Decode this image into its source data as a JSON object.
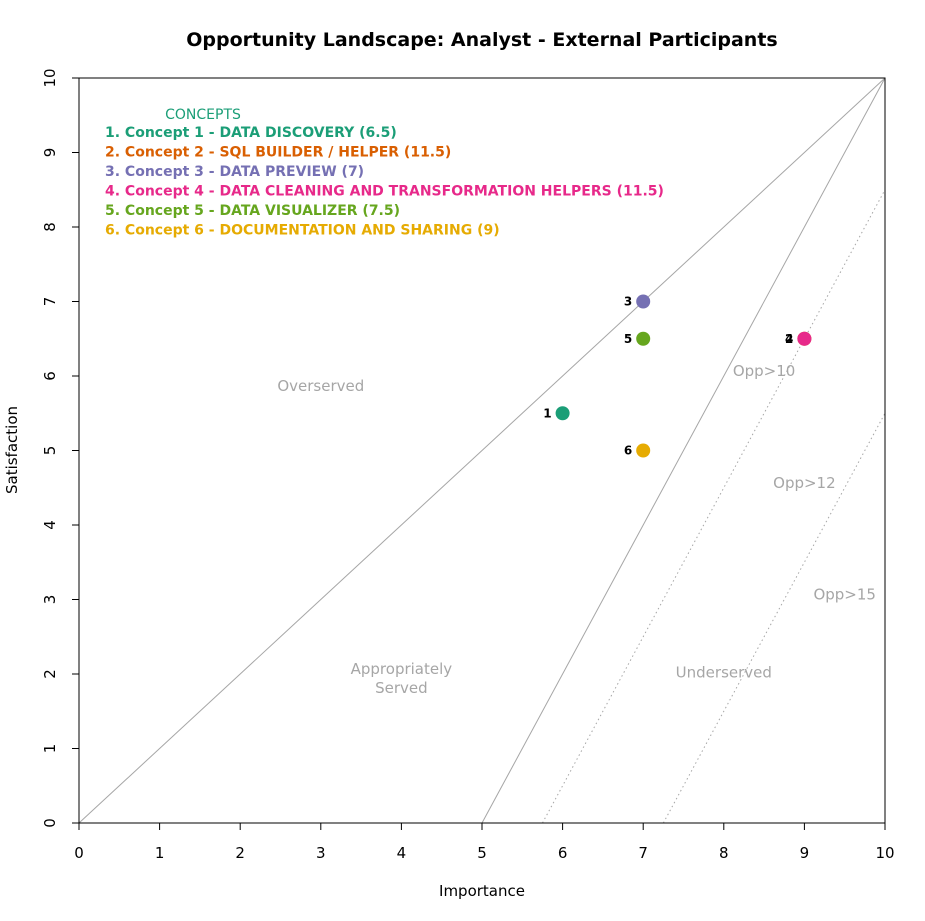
{
  "chart_data": {
    "type": "scatter",
    "title": "Opportunity Landscape: Analyst - External Participants",
    "xlabel": "Importance",
    "ylabel": "Satisfaction",
    "xlim": [
      0,
      10
    ],
    "ylim": [
      0,
      10
    ],
    "x_ticks": [
      "0",
      "1",
      "2",
      "3",
      "4",
      "5",
      "6",
      "7",
      "8",
      "9",
      "10"
    ],
    "y_ticks": [
      "0",
      "1",
      "2",
      "3",
      "4",
      "5",
      "6",
      "7",
      "8",
      "9",
      "10"
    ],
    "grid": false,
    "legend": {
      "title": "CONCEPTS",
      "title_color": "#1b9e77",
      "placement": "top-left"
    },
    "points": [
      {
        "label": "1",
        "legend": "1. Concept 1 - DATA DISCOVERY (6.5)",
        "x": 6,
        "y": 5.5,
        "color": "#1b9e77"
      },
      {
        "label": "2",
        "legend": "2. Concept 2 - SQL BUILDER / HELPER (11.5)",
        "x": 9,
        "y": 6.5,
        "color": "#d95f02"
      },
      {
        "label": "3",
        "legend": "3. Concept 3 - DATA PREVIEW (7)",
        "x": 7,
        "y": 7,
        "color": "#7570b3"
      },
      {
        "label": "4",
        "legend": "4. Concept 4 - DATA CLEANING AND TRANSFORMATION HELPERS (11.5)",
        "x": 9,
        "y": 6.5,
        "color": "#e7298a"
      },
      {
        "label": "5",
        "legend": "5. Concept 5 - DATA VISUALIZER (7.5)",
        "x": 7,
        "y": 6.5,
        "color": "#66a61e"
      },
      {
        "label": "6",
        "legend": "6. Concept 6 - DOCUMENTATION AND SHARING (9)",
        "x": 7,
        "y": 5,
        "color": "#e6ab02"
      }
    ],
    "reference_lines": [
      {
        "kind": "solid",
        "from": [
          0,
          0
        ],
        "to": [
          10,
          10
        ]
      },
      {
        "kind": "solid",
        "from": [
          5,
          0
        ],
        "to": [
          10,
          10
        ]
      },
      {
        "kind": "dotted",
        "from": [
          5.75,
          0
        ],
        "to": [
          10,
          8.5
        ]
      },
      {
        "kind": "dotted",
        "from": [
          7.25,
          0
        ],
        "to": [
          10,
          5.5
        ]
      }
    ],
    "region_labels": [
      {
        "lines": [
          "Overserved"
        ],
        "x": 3,
        "y": 5.8
      },
      {
        "lines": [
          "Appropriately",
          "Served"
        ],
        "x": 4,
        "y": 2.0
      },
      {
        "lines": [
          "Underserved"
        ],
        "x": 8,
        "y": 1.95
      },
      {
        "lines": [
          "Opp>10"
        ],
        "x": 8.5,
        "y": 6.0
      },
      {
        "lines": [
          "Opp>12"
        ],
        "x": 9.0,
        "y": 4.5
      },
      {
        "lines": [
          "Opp>15"
        ],
        "x": 9.5,
        "y": 3.0
      }
    ]
  }
}
